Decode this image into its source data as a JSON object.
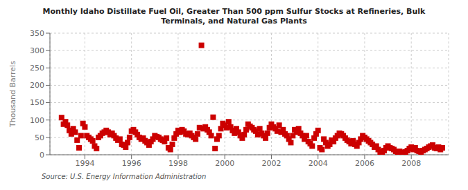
{
  "chart_data": {
    "type": "scatter",
    "title": "Monthly Idaho Distillate Fuel Oil, Greater Than 500 ppm Sulfur Stocks at Refineries, Bulk\nTerminals, and Natural Gas Plants",
    "y_label": "Thousand Barrels",
    "annotations": [
      "Source: U.S. Energy Information Administration"
    ],
    "color": "#cc0000",
    "marker": "square",
    "grid": true,
    "xlim": [
      1992.5,
      2009.6
    ],
    "xticks": [
      1994,
      1996,
      1998,
      2000,
      2002,
      2004,
      2006,
      2008
    ],
    "ylim": [
      0,
      350
    ],
    "yticks": [
      0,
      50,
      100,
      150,
      200,
      250,
      300,
      350
    ],
    "x": [
      1993.0,
      1993.083,
      1993.167,
      1993.25,
      1993.333,
      1993.417,
      1993.5,
      1993.583,
      1993.667,
      1993.75,
      1993.833,
      1993.917,
      1994.0,
      1994.083,
      1994.167,
      1994.25,
      1994.333,
      1994.417,
      1994.5,
      1994.583,
      1994.667,
      1994.75,
      1994.833,
      1994.917,
      1995.0,
      1995.083,
      1995.167,
      1995.25,
      1995.333,
      1995.417,
      1995.5,
      1995.583,
      1995.667,
      1995.75,
      1995.833,
      1995.917,
      1996.0,
      1996.083,
      1996.167,
      1996.25,
      1996.333,
      1996.417,
      1996.5,
      1996.583,
      1996.667,
      1996.75,
      1996.833,
      1996.917,
      1997.0,
      1997.083,
      1997.167,
      1997.25,
      1997.333,
      1997.417,
      1997.5,
      1997.583,
      1997.667,
      1997.75,
      1997.833,
      1997.917,
      1998.0,
      1998.083,
      1998.167,
      1998.25,
      1998.333,
      1998.417,
      1998.5,
      1998.583,
      1998.667,
      1998.75,
      1998.833,
      1998.917,
      1999.0,
      1999.083,
      1999.167,
      1999.25,
      1999.333,
      1999.417,
      1999.5,
      1999.583,
      1999.667,
      1999.75,
      1999.833,
      1999.917,
      2000.0,
      2000.083,
      2000.167,
      2000.25,
      2000.333,
      2000.417,
      2000.5,
      2000.583,
      2000.667,
      2000.75,
      2000.833,
      2000.917,
      2001.0,
      2001.083,
      2001.167,
      2001.25,
      2001.333,
      2001.417,
      2001.5,
      2001.583,
      2001.667,
      2001.75,
      2001.833,
      2001.917,
      2002.0,
      2002.083,
      2002.167,
      2002.25,
      2002.333,
      2002.417,
      2002.5,
      2002.583,
      2002.667,
      2002.75,
      2002.833,
      2002.917,
      2003.0,
      2003.083,
      2003.167,
      2003.25,
      2003.333,
      2003.417,
      2003.5,
      2003.583,
      2003.667,
      2003.75,
      2003.833,
      2003.917,
      2004.0,
      2004.083,
      2004.167,
      2004.25,
      2004.333,
      2004.417,
      2004.5,
      2004.583,
      2004.667,
      2004.75,
      2004.833,
      2004.917,
      2005.0,
      2005.083,
      2005.167,
      2005.25,
      2005.333,
      2005.417,
      2005.5,
      2005.583,
      2005.667,
      2005.75,
      2005.833,
      2005.917,
      2006.0,
      2006.083,
      2006.167,
      2006.25,
      2006.333,
      2006.417,
      2006.5,
      2006.583,
      2006.667,
      2006.75,
      2006.833,
      2006.917,
      2007.0,
      2007.083,
      2007.167,
      2007.25,
      2007.333,
      2007.417,
      2007.5,
      2007.583,
      2007.667,
      2007.75,
      2007.833,
      2007.917,
      2008.0,
      2008.083,
      2008.167,
      2008.25,
      2008.333,
      2008.417,
      2008.5,
      2008.583,
      2008.667,
      2008.75,
      2008.833,
      2008.917,
      2009.0,
      2009.083,
      2009.167,
      2009.25,
      2009.333
    ],
    "values": [
      107,
      88,
      95,
      85,
      70,
      60,
      75,
      65,
      42,
      20,
      55,
      90,
      80,
      55,
      50,
      45,
      40,
      25,
      18,
      50,
      55,
      62,
      65,
      70,
      65,
      58,
      62,
      55,
      48,
      42,
      45,
      30,
      28,
      22,
      35,
      50,
      68,
      72,
      65,
      58,
      50,
      45,
      48,
      40,
      35,
      28,
      38,
      45,
      55,
      52,
      50,
      45,
      42,
      38,
      48,
      20,
      15,
      30,
      48,
      60,
      70,
      65,
      72,
      68,
      60,
      58,
      62,
      55,
      50,
      45,
      60,
      78,
      315,
      75,
      80,
      72,
      65,
      55,
      108,
      18,
      45,
      55,
      75,
      90,
      85,
      78,
      95,
      80,
      70,
      62,
      75,
      65,
      55,
      48,
      58,
      72,
      88,
      82,
      78,
      72,
      68,
      58,
      75,
      62,
      55,
      48,
      62,
      78,
      88,
      80,
      75,
      68,
      85,
      65,
      72,
      60,
      55,
      45,
      35,
      55,
      72,
      65,
      75,
      62,
      55,
      45,
      55,
      38,
      32,
      25,
      48,
      60,
      70,
      20,
      15,
      45,
      35,
      25,
      30,
      42,
      38,
      48,
      55,
      62,
      60,
      55,
      48,
      42,
      38,
      32,
      40,
      30,
      25,
      35,
      45,
      55,
      50,
      45,
      40,
      35,
      30,
      22,
      25,
      15,
      8,
      5,
      12,
      20,
      25,
      20,
      18,
      15,
      10,
      8,
      10,
      7,
      5,
      8,
      12,
      18,
      22,
      15,
      20,
      12,
      10,
      8,
      12,
      15,
      18,
      22,
      25,
      28,
      20,
      18,
      22,
      15,
      20
    ]
  }
}
